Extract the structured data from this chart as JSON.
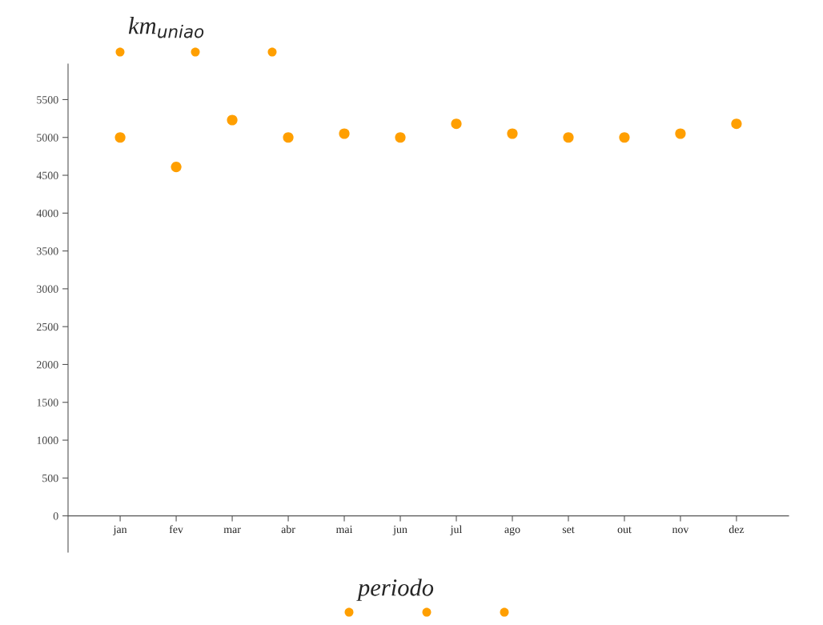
{
  "chart_data": {
    "type": "scatter",
    "xlabel": "periodo",
    "ylabel": "km$_{uniao}$",
    "categories": [
      "jan",
      "fev",
      "mar",
      "abr",
      "mai",
      "jun",
      "jul",
      "ago",
      "set",
      "out",
      "nov",
      "dez"
    ],
    "series": [
      {
        "color": "#ff9f00",
        "values": [
          5000,
          4610,
          5230,
          5000,
          5050,
          5000,
          5180,
          5050,
          5000,
          5000,
          5050,
          5180
        ]
      }
    ],
    "ylim": [
      -480,
      5970
    ],
    "yticks": [
      0,
      500,
      1000,
      1500,
      2000,
      2500,
      3000,
      3500,
      4000,
      4500,
      5000,
      5500
    ],
    "marker": "circle",
    "grid": false,
    "legend": false
  }
}
